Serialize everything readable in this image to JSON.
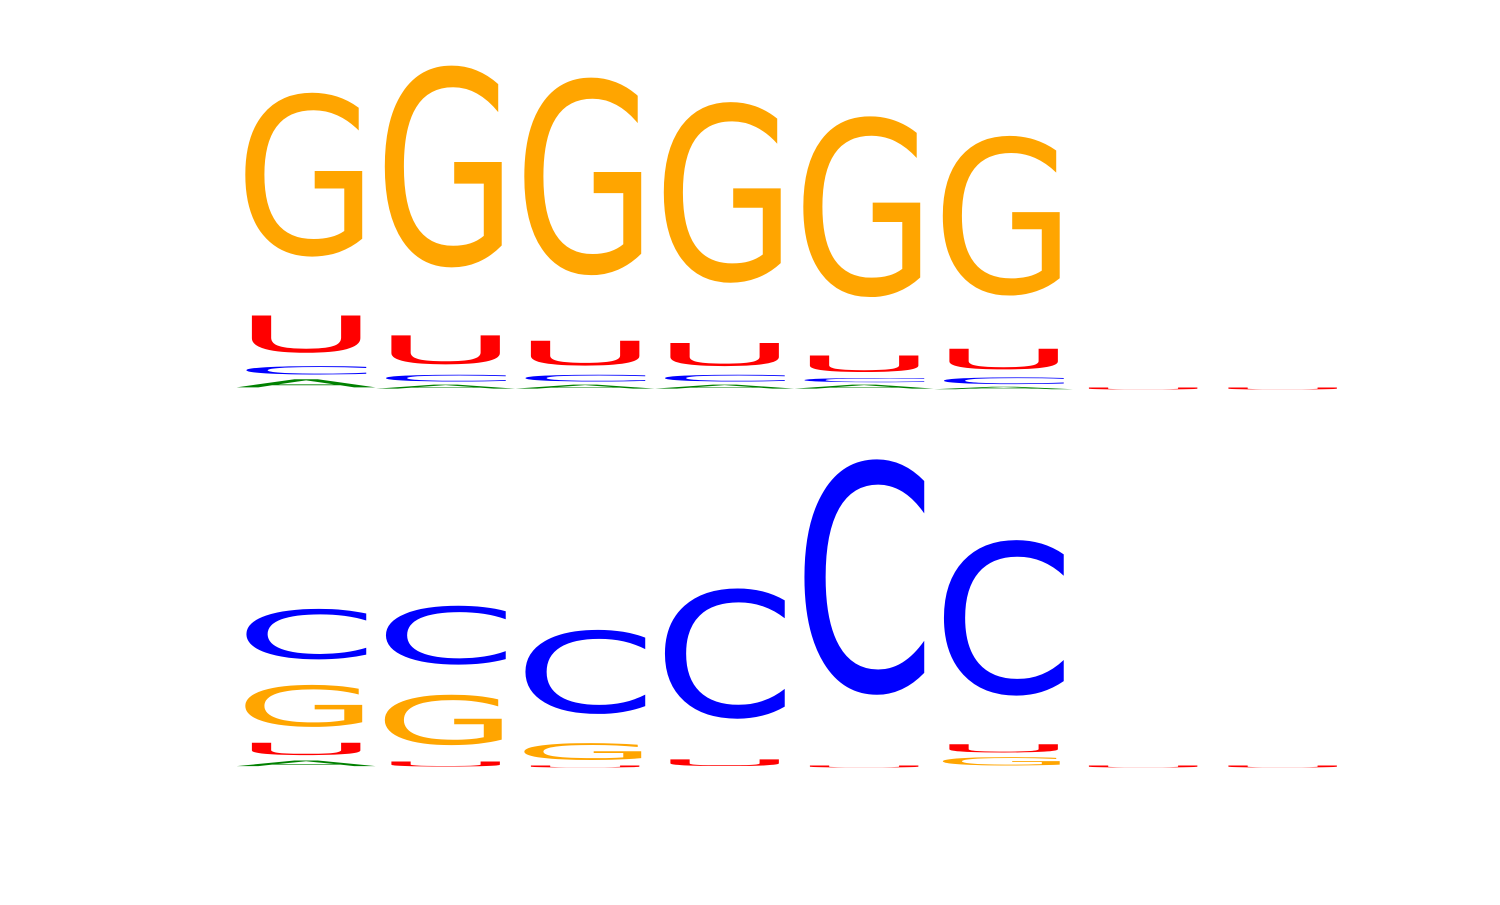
{
  "chart_data": [
    {
      "type": "sequence-logo",
      "alphabet": [
        "A",
        "C",
        "G",
        "U"
      ],
      "colors": {
        "A": "#008000",
        "C": "#0000ff",
        "G": "#ffa500",
        "U": "#ff0000"
      },
      "positions": [
        {
          "A": 0.1,
          "C": 0.1,
          "G": 1.95,
          "U": 0.45
        },
        {
          "A": 0.05,
          "C": 0.08,
          "G": 2.4,
          "U": 0.35
        },
        {
          "A": 0.05,
          "C": 0.08,
          "G": 2.35,
          "U": 0.3
        },
        {
          "A": 0.05,
          "C": 0.08,
          "G": 2.15,
          "U": 0.28
        },
        {
          "A": 0.05,
          "C": 0.05,
          "G": 2.15,
          "U": 0.2
        },
        {
          "A": 0.03,
          "C": 0.08,
          "G": 1.9,
          "U": 0.25
        },
        {
          "A": 0.0,
          "C": 0.0,
          "G": 0.0,
          "U": 0.01
        },
        {
          "A": 0.0,
          "C": 0.0,
          "G": 0.0,
          "U": 0.01
        }
      ]
    },
    {
      "type": "sequence-logo",
      "alphabet": [
        "A",
        "C",
        "G",
        "U"
      ],
      "colors": {
        "A": "#008000",
        "C": "#0000ff",
        "G": "#ffa500",
        "U": "#ff0000"
      },
      "positions": [
        {
          "A": 0.07,
          "C": 0.6,
          "G": 0.5,
          "U": 0.15
        },
        {
          "A": 0.0,
          "C": 0.7,
          "G": 0.6,
          "U": 0.06
        },
        {
          "A": 0.0,
          "C": 1.0,
          "G": 0.2,
          "U": 0.02
        },
        {
          "A": 0.0,
          "C": 1.55,
          "G": 0.0,
          "U": 0.08
        },
        {
          "A": 0.0,
          "C": 2.8,
          "G": 0.0,
          "U": 0.02
        },
        {
          "A": 0.0,
          "C": 1.85,
          "G": 0.1,
          "U": 0.1
        },
        {
          "A": 0.0,
          "C": 0.0,
          "G": 0.0,
          "U": 0.01
        },
        {
          "A": 0.0,
          "C": 0.0,
          "G": 0.0,
          "U": 0.01
        }
      ]
    }
  ]
}
